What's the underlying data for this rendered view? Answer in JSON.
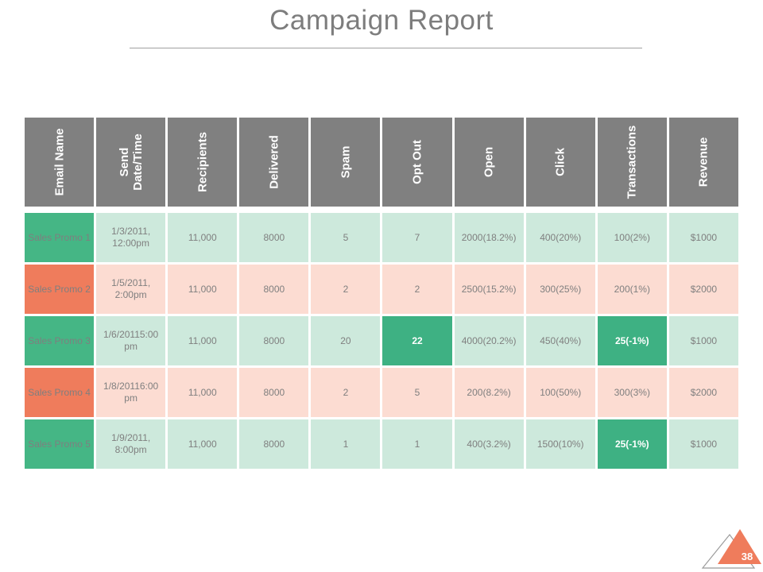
{
  "slide": {
    "title": "Campaign Report",
    "page_number": "38"
  },
  "colors": {
    "header_bg": "#808080",
    "header_text": "#ffffff",
    "green_label": "#45b685",
    "green_row": "#cde9dc",
    "orange_label": "#ef7c5c",
    "orange_row": "#fcdcd2",
    "highlight_bg": "#3eb183",
    "cell_text": "#7f7f7f",
    "title_text": "#7d7d7d",
    "page_triangle": "#ef7c5c"
  },
  "table": {
    "columns": [
      {
        "id": "email-name",
        "label": "Email Name"
      },
      {
        "id": "send-datetime",
        "label": "Send\nDate/Time"
      },
      {
        "id": "recipients",
        "label": "Recipients"
      },
      {
        "id": "delivered",
        "label": "Delivered"
      },
      {
        "id": "spam",
        "label": "Spam"
      },
      {
        "id": "opt-out",
        "label": "Opt Out"
      },
      {
        "id": "open",
        "label": "Open"
      },
      {
        "id": "click",
        "label": "Click"
      },
      {
        "id": "transactions",
        "label": "Transactions"
      },
      {
        "id": "revenue",
        "label": "Revenue"
      }
    ],
    "rows": [
      {
        "name": "Sales Promo 1",
        "theme": "green",
        "cells": [
          "1/3/2011, 12:00pm",
          "11,000",
          "8000",
          "5",
          "7",
          "2000(18.2%)",
          "400(20%)",
          "100(2%)",
          "$1000"
        ],
        "highlight_cells": []
      },
      {
        "name": "Sales Promo 2",
        "theme": "orange",
        "cells": [
          "1/5/2011, 2:00pm",
          "11,000",
          "8000",
          "2",
          "2",
          "2500(15.2%)",
          "300(25%)",
          "200(1%)",
          "$2000"
        ],
        "highlight_cells": []
      },
      {
        "name": "Sales Promo 3",
        "theme": "green",
        "cells": [
          "1/6/20115:00 pm",
          "11,000",
          "8000",
          "20",
          "22",
          "4000(20.2%)",
          "450(40%)",
          "25(-1%)",
          "$1000"
        ],
        "highlight_cells": [
          4,
          7
        ]
      },
      {
        "name": "Sales Promo 4",
        "theme": "orange",
        "cells": [
          "1/8/20116:00 pm",
          "11,000",
          "8000",
          "2",
          "5",
          "200(8.2%)",
          "100(50%)",
          "300(3%)",
          "$2000"
        ],
        "highlight_cells": []
      },
      {
        "name": "Sales Promo 5",
        "theme": "green",
        "cells": [
          "1/9/2011, 8:00pm",
          "11,000",
          "8000",
          "1",
          "1",
          "400(3.2%)",
          "1500(10%)",
          "25(-1%)",
          "$1000"
        ],
        "highlight_cells": [
          7
        ]
      }
    ]
  }
}
